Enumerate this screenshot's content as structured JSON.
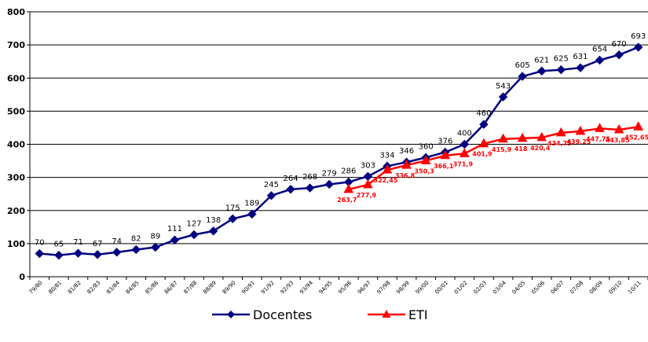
{
  "chart_data": {
    "type": "line",
    "title": "",
    "xlabel": "",
    "ylabel": "",
    "ylim": [
      0,
      800
    ],
    "yticks": [
      0,
      100,
      200,
      300,
      400,
      500,
      600,
      700,
      800
    ],
    "grid": "horizontal",
    "legend": "bottom",
    "categories": [
      "79/80",
      "80/81",
      "81/82",
      "82/83",
      "83/84",
      "84/85",
      "85/86",
      "86/87",
      "87/88",
      "88/89",
      "89/90",
      "90/91",
      "91/92",
      "92/93",
      "93/94",
      "94/95",
      "95/96",
      "96/97",
      "97/98",
      "98/99",
      "99/00",
      "00/01",
      "01/02",
      "02/03",
      "03/04",
      "04/05",
      "05/06",
      "06/07",
      "07/08",
      "08/09",
      "09/10",
      "10/11"
    ],
    "series": [
      {
        "name": "Docentes",
        "color": "#000080",
        "marker": "diamond",
        "values": [
          70,
          65,
          71,
          67,
          74,
          82,
          89,
          111,
          127,
          138,
          175,
          189,
          245,
          264,
          268,
          279,
          286,
          303,
          334,
          346,
          360,
          376,
          400,
          460,
          543,
          605,
          621,
          625,
          631,
          654,
          670,
          693
        ],
        "labels": [
          "70",
          "65",
          "71",
          "67",
          "74",
          "82",
          "89",
          "111",
          "127",
          "138",
          "175",
          "189",
          "245",
          "264",
          "268",
          "279",
          "286",
          "303",
          "334",
          "346",
          "360",
          "376",
          "400",
          "460",
          "543",
          "605",
          "621",
          "625",
          "631",
          "654",
          "670",
          "693"
        ]
      },
      {
        "name": "ETI",
        "color": "#ff0000",
        "marker": "triangle",
        "values": [
          null,
          null,
          null,
          null,
          null,
          null,
          null,
          null,
          null,
          null,
          null,
          null,
          null,
          null,
          null,
          null,
          263.7,
          277.9,
          322.45,
          336.8,
          350.3,
          366.1,
          371.9,
          401.9,
          415.9,
          418,
          420.4,
          434.75,
          439.25,
          447.75,
          443.85,
          452.65
        ],
        "labels": [
          null,
          null,
          null,
          null,
          null,
          null,
          null,
          null,
          null,
          null,
          null,
          null,
          null,
          null,
          null,
          null,
          "263,7",
          "277,9",
          "322,45",
          "336,8",
          "350,3",
          "366,1",
          "371,9",
          "401,9",
          "415,9",
          "418",
          "420,4",
          "434,75",
          "439,25",
          "447,75",
          "443,85",
          "452,65"
        ]
      }
    ]
  }
}
